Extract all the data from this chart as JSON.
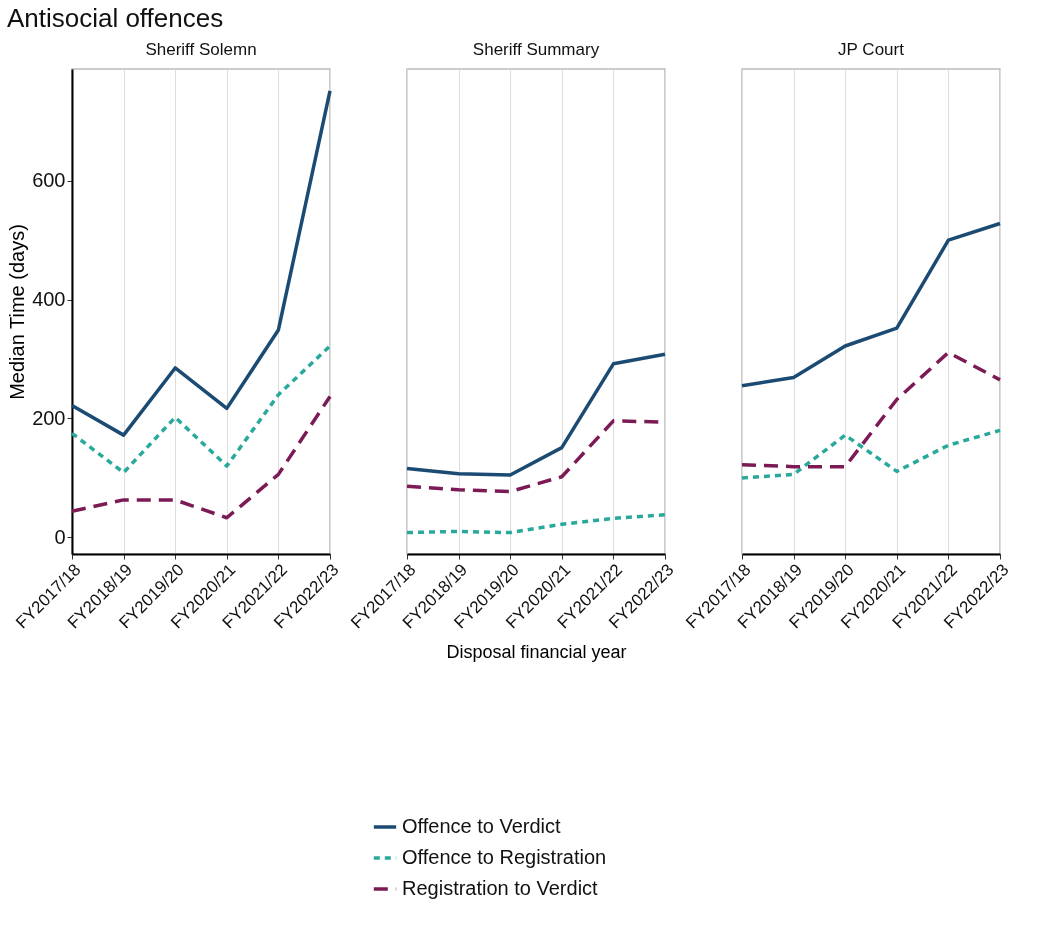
{
  "chart_data": [
    {
      "type": "line",
      "title": "Antisocial offences",
      "subtitle": "Sheriff Solemn",
      "ylabel": "Median Time (days)",
      "categories": [
        "FY2017/18",
        "FY2018/19",
        "FY2019/20",
        "FY2020/21",
        "FY2021/22",
        "FY2022/23"
      ],
      "ylim": [
        -28,
        788
      ],
      "yticks": [
        0,
        200,
        400,
        600
      ],
      "grid": "x",
      "legend": "bottom",
      "series": [
        {
          "name": "Offence to Verdict",
          "color": "#1b4b72",
          "line_style": "solid",
          "values": [
            222,
            172,
            285,
            217,
            349,
            751
          ]
        },
        {
          "name": "Offence to Registration",
          "color": "#28a99c",
          "line_style": "dotted",
          "values": [
            175,
            109,
            202,
            120,
            240,
            322
          ]
        },
        {
          "name": "Registration to Verdict",
          "color": "#7c1a55",
          "line_style": "dashed",
          "values": [
            44,
            63,
            63,
            33,
            106,
            237
          ]
        }
      ]
    },
    {
      "type": "line",
      "subtitle": "Sheriff Summary",
      "xlabel": "Disposal financial year",
      "categories": [
        "FY2017/18",
        "FY2018/19",
        "FY2019/20",
        "FY2020/21",
        "FY2021/22",
        "FY2022/23"
      ],
      "ylim": [
        -28,
        788
      ],
      "tick_labels": "x",
      "grid": "x",
      "series": [
        {
          "name": "Offence to Verdict",
          "color": "#1b4b72",
          "line_style": "solid",
          "values": [
            116,
            107,
            105,
            151,
            292,
            308
          ]
        },
        {
          "name": "Offence to Registration",
          "color": "#28a99c",
          "line_style": "dotted",
          "values": [
            8,
            10,
            8,
            22,
            32,
            38
          ]
        },
        {
          "name": "Registration to Verdict",
          "color": "#7c1a55",
          "line_style": "dashed",
          "values": [
            86,
            80,
            77,
            102,
            196,
            194
          ]
        }
      ]
    },
    {
      "type": "line",
      "subtitle": "JP Court",
      "categories": [
        "FY2017/18",
        "FY2018/19",
        "FY2019/20",
        "FY2020/21",
        "FY2021/22",
        "FY2022/23"
      ],
      "ylim": [
        -28,
        788
      ],
      "tick_labels": "x",
      "grid": "x",
      "series": [
        {
          "name": "Offence to Verdict",
          "color": "#1b4b72",
          "line_style": "solid",
          "values": [
            255,
            269,
            322,
            352,
            500,
            528
          ]
        },
        {
          "name": "Offence to Registration",
          "color": "#28a99c",
          "line_style": "dotted",
          "values": [
            100,
            106,
            172,
            111,
            155,
            180
          ]
        },
        {
          "name": "Registration to Verdict",
          "color": "#7c1a55",
          "line_style": "dashed",
          "values": [
            122,
            119,
            119,
            232,
            311,
            265
          ]
        }
      ]
    }
  ]
}
